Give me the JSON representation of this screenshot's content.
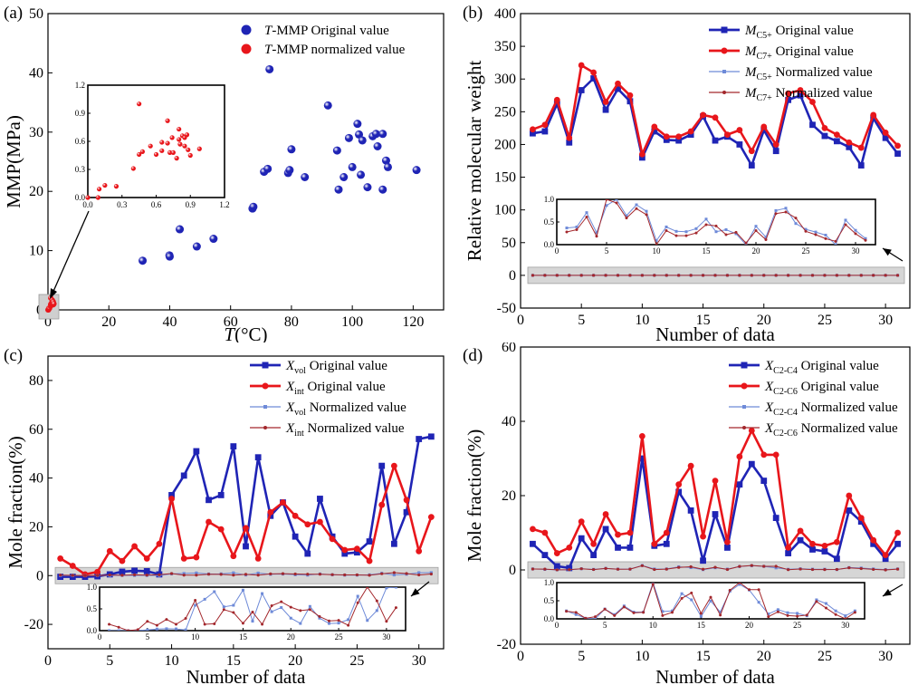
{
  "chart_data": [
    {
      "panel_label": "(a)",
      "type": "scatter",
      "xlabel_italic": "T",
      "xlabel": "(°C)",
      "ylabel": "MMP(MPa)",
      "xlim": [
        0,
        130
      ],
      "ylim": [
        0,
        50
      ],
      "xticks": [
        0,
        20,
        40,
        60,
        80,
        100,
        120
      ],
      "yticks": [
        0,
        10,
        20,
        30,
        40,
        50
      ],
      "series": [
        {
          "name_italic": "T",
          "name": "-MMP Original value",
          "color": "#1f24b5",
          "points": [
            [
              31.1,
              8.3
            ],
            [
              39.9,
              9.2
            ],
            [
              40.0,
              9.0
            ],
            [
              43.3,
              13.6
            ],
            [
              48.9,
              10.7
            ],
            [
              54.4,
              12.0
            ],
            [
              67.2,
              17.1
            ],
            [
              67.5,
              17.4
            ],
            [
              71.0,
              23.3
            ],
            [
              72.2,
              23.8
            ],
            [
              72.8,
              40.6
            ],
            [
              78.9,
              23.1
            ],
            [
              79.4,
              23.6
            ],
            [
              80.0,
              27.1
            ],
            [
              84.4,
              22.4
            ],
            [
              92.0,
              34.5
            ],
            [
              95.0,
              26.9
            ],
            [
              95.5,
              20.3
            ],
            [
              97.2,
              22.4
            ],
            [
              98.9,
              29.0
            ],
            [
              100.0,
              24.1
            ],
            [
              101.7,
              31.4
            ],
            [
              102.2,
              29.6
            ],
            [
              102.8,
              22.8
            ],
            [
              103.3,
              28.6
            ],
            [
              105.0,
              20.7
            ],
            [
              106.7,
              29.3
            ],
            [
              107.8,
              29.7
            ],
            [
              108.3,
              27.6
            ],
            [
              110.0,
              29.7
            ],
            [
              110.0,
              20.3
            ],
            [
              111.1,
              25.2
            ],
            [
              111.7,
              24.1
            ],
            [
              121.1,
              23.6
            ]
          ]
        },
        {
          "name_italic": "T",
          "name": "-MMP normalized value",
          "color": "#e8161b",
          "points": [
            [
              0.0,
              0.0
            ],
            [
              0.09,
              0.0
            ],
            [
              0.1,
              0.09
            ],
            [
              0.15,
              0.13
            ],
            [
              0.25,
              0.12
            ],
            [
              0.4,
              0.31
            ],
            [
              0.45,
              0.46
            ],
            [
              0.45,
              1.0
            ],
            [
              0.48,
              0.49
            ],
            [
              0.55,
              0.55
            ],
            [
              0.6,
              0.46
            ],
            [
              0.65,
              0.59
            ],
            [
              0.65,
              0.5
            ],
            [
              0.7,
              0.58
            ],
            [
              0.7,
              0.82
            ],
            [
              0.72,
              0.48
            ],
            [
              0.74,
              0.64
            ],
            [
              0.75,
              0.48
            ],
            [
              0.78,
              0.42
            ],
            [
              0.8,
              0.73
            ],
            [
              0.8,
              0.62
            ],
            [
              0.81,
              0.57
            ],
            [
              0.83,
              0.66
            ],
            [
              0.85,
              0.64
            ],
            [
              0.85,
              0.55
            ],
            [
              0.87,
              0.67
            ],
            [
              0.88,
              0.51
            ],
            [
              0.9,
              0.45
            ],
            [
              0.98,
              0.52
            ]
          ]
        }
      ],
      "inset": {
        "xlim": [
          0,
          1.2
        ],
        "ylim": [
          0,
          1.2
        ],
        "xticks": [
          "0.0",
          "0.3",
          "0.6",
          "0.9",
          "1.2"
        ],
        "yticks": [
          "0.0",
          "0.3",
          "0.6",
          "0.9",
          "1.2"
        ]
      }
    },
    {
      "panel_label": "(b)",
      "type": "line",
      "xlabel": "Number of data",
      "ylabel": "Relative molecular weight",
      "xlim": [
        0,
        32
      ],
      "ylim": [
        -50,
        400
      ],
      "xticks": [
        0,
        5,
        10,
        15,
        20,
        25,
        30
      ],
      "yticks": [
        -50,
        0,
        50,
        100,
        150,
        200,
        250,
        300,
        350,
        400
      ],
      "x": [
        1,
        2,
        3,
        4,
        5,
        6,
        7,
        8,
        9,
        10,
        11,
        12,
        13,
        14,
        15,
        16,
        17,
        18,
        19,
        20,
        21,
        22,
        23,
        24,
        25,
        26,
        27,
        28,
        29,
        30,
        31
      ],
      "series": [
        {
          "name_main": "M",
          "name_sub": "C5+",
          "name": " Original value",
          "color": "#1f24b5",
          "style": "orig-square",
          "values": [
            217,
            220,
            262,
            203,
            283,
            301,
            253,
            285,
            266,
            180,
            220,
            207,
            206,
            215,
            243,
            206,
            212,
            200,
            168,
            222,
            190,
            268,
            275,
            230,
            213,
            205,
            196,
            168,
            240,
            210,
            186
          ]
        },
        {
          "name_main": "M",
          "name_sub": "C7+",
          "name": " Original value",
          "color": "#e8161b",
          "style": "orig-circle",
          "values": [
            223,
            230,
            268,
            210,
            321,
            310,
            265,
            293,
            275,
            185,
            227,
            212,
            212,
            220,
            245,
            241,
            215,
            222,
            190,
            227,
            200,
            278,
            283,
            265,
            225,
            215,
            203,
            195,
            245,
            218,
            198
          ]
        }
      ],
      "normalized_series": [
        {
          "name_main": "M",
          "name_sub": "C5+",
          "name": " Normalized value",
          "color": "#6e8ad8",
          "style": "norm-square"
        },
        {
          "name_main": "M",
          "name_sub": "C7+",
          "name": " Normalized value",
          "color": "#a3272c",
          "style": "norm-circle"
        }
      ],
      "inset": {
        "xticks": [
          "0",
          "5",
          "10",
          "15",
          "20",
          "25",
          "30"
        ],
        "yticks": [
          "0.0",
          "0.5",
          "1.0"
        ]
      }
    },
    {
      "panel_label": "(c)",
      "type": "line",
      "xlabel": "Number of data",
      "ylabel": "Mole fraction(%)",
      "xlim": [
        0,
        32
      ],
      "ylim": [
        -30,
        90
      ],
      "xticks": [
        0,
        5,
        10,
        15,
        20,
        25,
        30
      ],
      "yticks": [
        -20,
        0,
        20,
        40,
        60,
        80
      ],
      "x": [
        1,
        2,
        3,
        4,
        5,
        6,
        7,
        8,
        9,
        10,
        11,
        12,
        13,
        14,
        15,
        16,
        17,
        18,
        19,
        20,
        21,
        22,
        23,
        24,
        25,
        26,
        27,
        28,
        29,
        30,
        31
      ],
      "series": [
        {
          "name_main": "X",
          "name_sub": "vol",
          "name": " Original value",
          "color": "#1f24b5",
          "style": "orig-square",
          "values": [
            -0.5,
            -0.5,
            -0.5,
            -0.3,
            0.5,
            1.6,
            2.0,
            1.8,
            0.5,
            33,
            41,
            51,
            31,
            33,
            53,
            12,
            48.5,
            24.5,
            30,
            16,
            9,
            31.5,
            16,
            9,
            9.5,
            14,
            45,
            13,
            26,
            56,
            57
          ]
        },
        {
          "name_main": "X",
          "name_sub": "int",
          "name": " Original value",
          "color": "#e8161b",
          "style": "orig-circle",
          "values": [
            7.0,
            4.0,
            0.5,
            1.5,
            10,
            6,
            12,
            7,
            13,
            31.5,
            7,
            7.5,
            22,
            19,
            8,
            19.5,
            7,
            26,
            30,
            24.5,
            21,
            22,
            15,
            10.5,
            11,
            6,
            29,
            45,
            31,
            10,
            24
          ]
        }
      ],
      "normalized_series": [
        {
          "name_main": "X",
          "name_sub": "vol",
          "name": " Normalized value",
          "color": "#6e8ad8",
          "style": "norm-square"
        },
        {
          "name_main": "X",
          "name_sub": "int",
          "name": " Normalized value",
          "color": "#a3272c",
          "style": "norm-circle"
        }
      ],
      "inset": {
        "xticks": [
          "0",
          "5",
          "10",
          "15",
          "20",
          "25",
          "30"
        ],
        "yticks": [
          "0.0",
          "0.5",
          "1.0"
        ]
      }
    },
    {
      "panel_label": "(d)",
      "type": "line",
      "xlabel": "Number of data",
      "ylabel": "Mole fraction(%)",
      "xlim": [
        0,
        32
      ],
      "ylim": [
        -20,
        60
      ],
      "xticks": [
        0,
        5,
        10,
        15,
        20,
        25,
        30
      ],
      "yticks": [
        -20,
        0,
        20,
        40,
        60
      ],
      "x": [
        1,
        2,
        3,
        4,
        5,
        6,
        7,
        8,
        9,
        10,
        11,
        12,
        13,
        14,
        15,
        16,
        17,
        18,
        19,
        20,
        21,
        22,
        23,
        24,
        25,
        26,
        27,
        28,
        29,
        30,
        31
      ],
      "series": [
        {
          "name_main": "X",
          "name_sub": "C2-C4",
          "name": " Original value",
          "color": "#1f24b5",
          "style": "orig-square",
          "values": [
            7,
            4,
            1,
            0.5,
            8.5,
            4,
            11,
            6,
            6,
            30,
            6.5,
            7,
            21,
            16,
            2.5,
            15,
            6,
            23,
            28.5,
            24,
            14,
            4.5,
            8,
            5.5,
            5,
            3,
            16,
            13,
            7,
            3,
            7
          ]
        },
        {
          "name_main": "X",
          "name_sub": "C2-C6",
          "name": " Original value",
          "color": "#e8161b",
          "style": "orig-circle",
          "values": [
            11,
            10,
            4.5,
            6,
            13,
            7,
            15,
            9.5,
            10,
            36,
            7,
            10,
            23,
            28,
            9,
            24,
            7.5,
            30.5,
            37.5,
            31,
            31,
            6,
            10.5,
            7,
            6.5,
            7.5,
            20,
            14,
            8,
            4,
            10
          ]
        }
      ],
      "normalized_series": [
        {
          "name_main": "X",
          "name_sub": "C2-C4",
          "name": " Normalized value",
          "color": "#6e8ad8",
          "style": "norm-square"
        },
        {
          "name_main": "X",
          "name_sub": "C2-C6",
          "name": " Normalized value",
          "color": "#a3272c",
          "style": "norm-circle"
        }
      ],
      "inset": {
        "xticks": [
          "0",
          "5",
          "10",
          "15",
          "20",
          "25",
          "30"
        ],
        "yticks": [
          "0.0",
          "0.5",
          "1.0"
        ]
      }
    }
  ]
}
